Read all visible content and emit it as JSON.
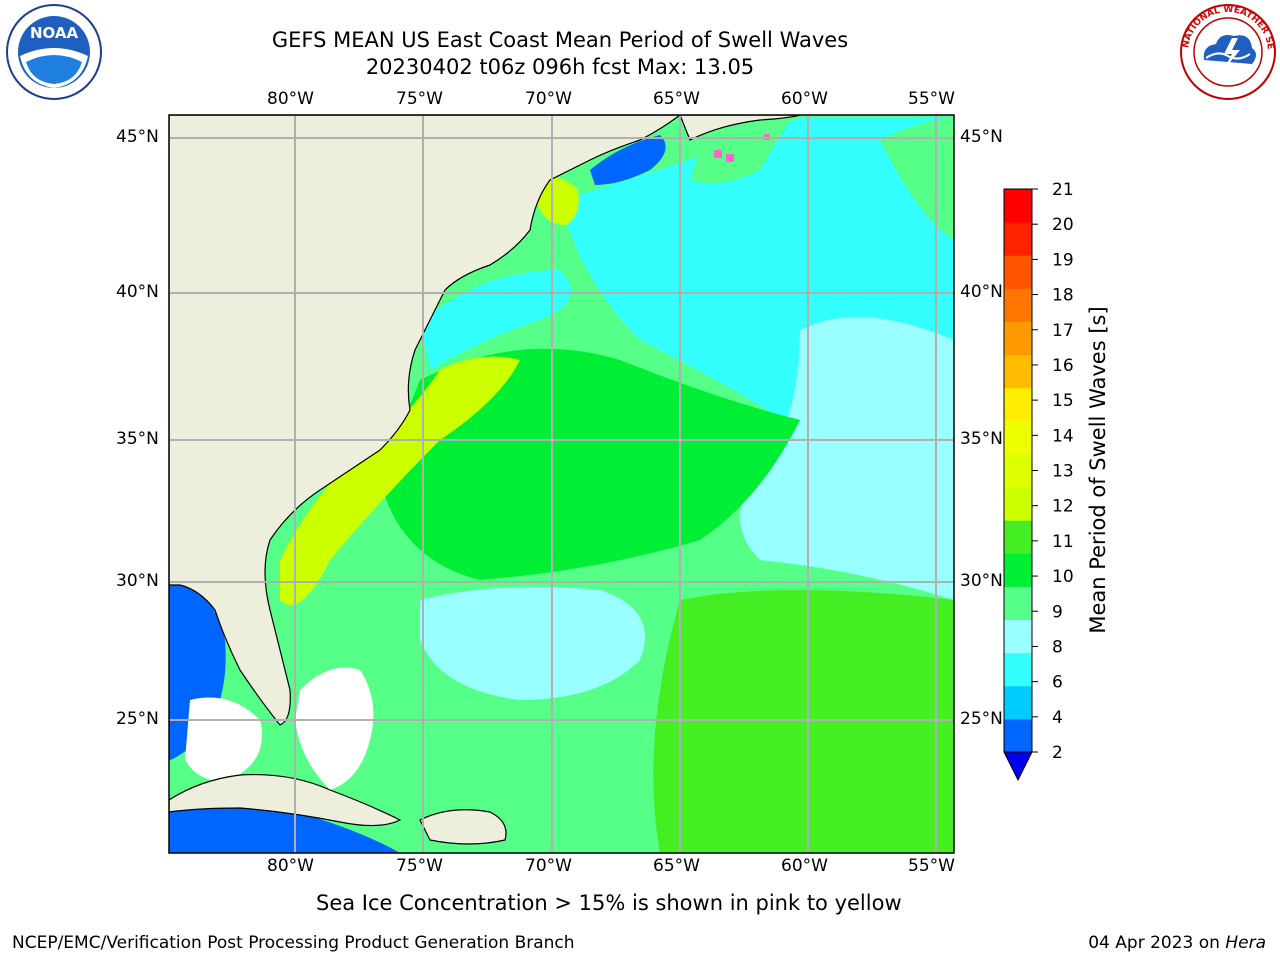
{
  "header": {
    "title_line1": "GEFS MEAN US East Coast Mean Period of Swell Waves",
    "title_line2": "20230402 t06z 096h fcst   Max: 13.05"
  },
  "map": {
    "lon_labels": [
      "80°W",
      "75°W",
      "70°W",
      "65°W",
      "60°W",
      "55°W"
    ],
    "lat_labels": [
      "45°N",
      "40°N",
      "35°N",
      "30°N",
      "25°N"
    ],
    "colors": {
      "land": "#eeeedd",
      "ice_or_nodata": "#ffffff",
      "grid": "#b0b0b0",
      "coast": "#000000"
    }
  },
  "colorbar": {
    "label": "Mean Period of Swell Waves [s]",
    "ticks": [
      "21",
      "20",
      "19",
      "18",
      "17",
      "16",
      "15",
      "14",
      "13",
      "12",
      "11",
      "10",
      "9",
      "8",
      "6",
      "4",
      "2"
    ],
    "bins": [
      {
        "from": 2,
        "to": 4,
        "color": "#0066ff"
      },
      {
        "from": 4,
        "to": 6,
        "color": "#00ccff"
      },
      {
        "from": 6,
        "to": 8,
        "color": "#33ffff"
      },
      {
        "from": 8,
        "to": 9,
        "color": "#99ffff"
      },
      {
        "from": 9,
        "to": 10,
        "color": "#55ff88"
      },
      {
        "from": 10,
        "to": 11,
        "color": "#00ee33"
      },
      {
        "from": 11,
        "to": 12,
        "color": "#44ee22"
      },
      {
        "from": 12,
        "to": 13,
        "color": "#ccff00"
      },
      {
        "from": 13,
        "to": 14,
        "color": "#ddff00"
      },
      {
        "from": 14,
        "to": 15,
        "color": "#eeff00"
      },
      {
        "from": 15,
        "to": 16,
        "color": "#ffee00"
      },
      {
        "from": 16,
        "to": 17,
        "color": "#ffbb00"
      },
      {
        "from": 17,
        "to": 18,
        "color": "#ff9900"
      },
      {
        "from": 18,
        "to": 19,
        "color": "#ff7700"
      },
      {
        "from": 19,
        "to": 20,
        "color": "#ff5500"
      },
      {
        "from": 20,
        "to": 21,
        "color": "#ff2200"
      },
      {
        "from": 21,
        "to": 22,
        "color": "#ff0000"
      }
    ],
    "under_color": "#0000ee"
  },
  "note": "Sea Ice Concentration > 15% is shown in pink to yellow",
  "footer": {
    "left": "NCEP/EMC/Verification Post Processing Product Generation Branch",
    "date": "04 Apr 2023 on ",
    "machine": "Hera"
  },
  "logos": {
    "noaa_text": "NOAA",
    "nws_text": "NATIONAL WEATHER SERVICE"
  }
}
